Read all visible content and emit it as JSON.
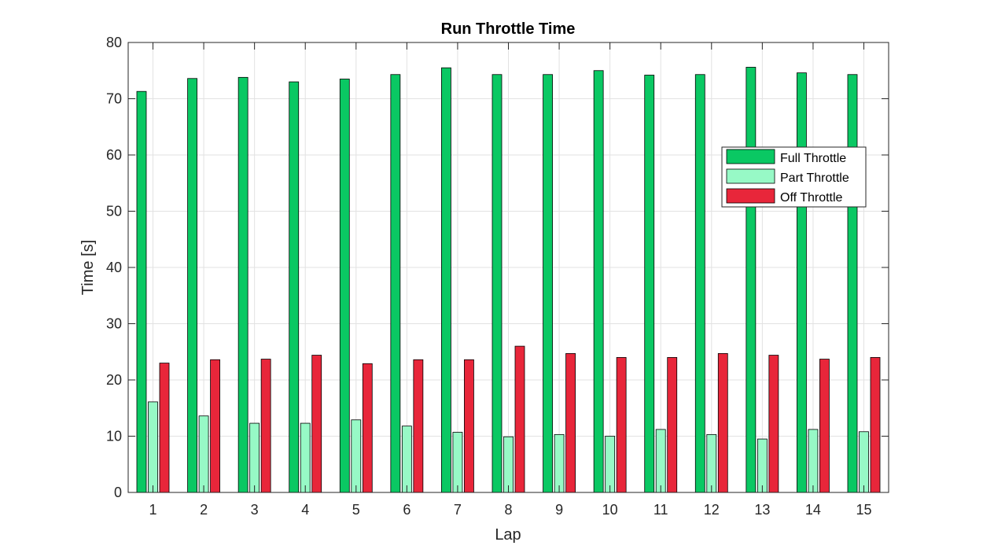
{
  "chart_data": {
    "type": "bar",
    "title": "Run Throttle Time",
    "xlabel": "Lap",
    "ylabel": "Time [s]",
    "ylim": [
      0,
      80
    ],
    "yticks": [
      0,
      10,
      20,
      30,
      40,
      50,
      60,
      70,
      80
    ],
    "grid": true,
    "legend_position": "top-right",
    "categories": [
      "1",
      "2",
      "3",
      "4",
      "5",
      "6",
      "7",
      "8",
      "9",
      "10",
      "11",
      "12",
      "13",
      "14",
      "15"
    ],
    "series": [
      {
        "name": "Full Throttle",
        "color": "#0ac863",
        "values": [
          71.3,
          73.6,
          73.8,
          73.0,
          73.5,
          74.3,
          75.5,
          74.3,
          74.3,
          75.0,
          74.2,
          74.3,
          75.6,
          74.6,
          74.3
        ]
      },
      {
        "name": "Part Throttle",
        "color": "#97f9c6",
        "values": [
          16.1,
          13.6,
          12.3,
          12.3,
          12.9,
          11.8,
          10.7,
          9.9,
          10.3,
          10.0,
          11.2,
          10.3,
          9.5,
          11.2,
          10.8
        ]
      },
      {
        "name": "Off Throttle",
        "color": "#e8263a",
        "values": [
          23.0,
          23.6,
          23.7,
          24.4,
          22.9,
          23.6,
          23.6,
          26.0,
          24.7,
          24.0,
          24.0,
          24.7,
          24.4,
          23.7,
          24.0
        ]
      }
    ]
  }
}
